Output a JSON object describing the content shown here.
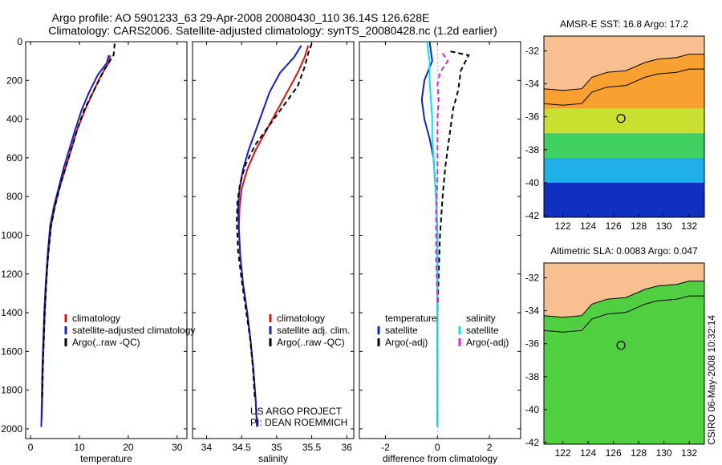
{
  "header": {
    "line1": "Argo profile: AO 5901233_63 29-Apr-2008 20080430_110 36.14S 126.628E",
    "line2": "Climatology: CARS2006. Satellite-adjusted climatology: synTS_20080428.nc (1.2d earlier)"
  },
  "credit": "CSIRO 06-May-2008 10:32:14",
  "colors": {
    "clim": "#e01010",
    "sat": "#1020d0",
    "argo": "#000000",
    "satS": "#00e5ee",
    "argoS": "#e020e0",
    "land": "#f8c090"
  },
  "chart_data": [
    {
      "type": "line",
      "xlabel": "temperature",
      "ylabel": "",
      "xlim": [
        -1,
        32
      ],
      "ylim": [
        2050,
        0
      ],
      "xticks": [
        "0",
        "10",
        "20",
        "30"
      ],
      "xtick_values": [
        0,
        10,
        20,
        30
      ],
      "yticks": [
        "0",
        "200",
        "400",
        "600",
        "800",
        "1000",
        "1200",
        "1400",
        "1600",
        "1800",
        "2000"
      ],
      "ytick_values": [
        0,
        200,
        400,
        600,
        800,
        1000,
        1200,
        1400,
        1600,
        1800,
        2000
      ],
      "legend": [
        "climatology",
        "satellite-adjusted climatology",
        "Argo(..raw -QC)"
      ],
      "legend_position": "lower-middle",
      "series": [
        {
          "name": "climatology",
          "color": "clim",
          "dash": false,
          "x": [
            16.3,
            16.0,
            14.5,
            12.8,
            11.2,
            9.6,
            8.4,
            7.2,
            6.0,
            5.0,
            4.2,
            3.6,
            3.2,
            2.9,
            2.7,
            2.5,
            2.4,
            2.3
          ],
          "y": [
            70,
            110,
            170,
            260,
            350,
            450,
            550,
            650,
            750,
            850,
            950,
            1100,
            1250,
            1400,
            1550,
            1700,
            1850,
            1950
          ]
        },
        {
          "name": "satellite-adjusted climatology",
          "color": "sat",
          "dash": false,
          "x": [
            16.0,
            15.6,
            13.8,
            12.0,
            10.5,
            9.2,
            8.0,
            6.8,
            5.8,
            4.8,
            4.0,
            3.5,
            3.1,
            2.8,
            2.6,
            2.4,
            2.3,
            2.2
          ],
          "y": [
            70,
            110,
            170,
            260,
            350,
            450,
            550,
            650,
            750,
            850,
            950,
            1100,
            1250,
            1400,
            1550,
            1700,
            1850,
            1990
          ]
        },
        {
          "name": "Argo(..raw -QC)",
          "color": "argo",
          "dash": true,
          "x": [
            17.2,
            17.0,
            15.2,
            12.8,
            11.0,
            9.6,
            8.4,
            7.2,
            6.0,
            5.0,
            4.2,
            3.6,
            3.2,
            2.9,
            2.7,
            2.5,
            2.4
          ],
          "y": [
            10,
            70,
            140,
            260,
            350,
            450,
            550,
            650,
            750,
            850,
            950,
            1100,
            1250,
            1400,
            1550,
            1700,
            1850
          ]
        }
      ]
    },
    {
      "type": "line",
      "xlabel": "salinity",
      "ylabel": "",
      "xlim": [
        33.8,
        36.1
      ],
      "ylim": [
        2050,
        0
      ],
      "xticks": [
        "34",
        "34.5",
        "35",
        "35.5",
        "36"
      ],
      "xtick_values": [
        34,
        34.5,
        35,
        35.5,
        36
      ],
      "legend": [
        "climatology",
        "satellite adj. clim.",
        "Argo(..raw -QC)"
      ],
      "legend_position": "lower-right",
      "annotations": [
        "US ARGO PROJECT",
        "PI: DEAN ROEMMICH"
      ],
      "series": [
        {
          "name": "climatology",
          "color": "clim",
          "dash": false,
          "x": [
            35.45,
            35.4,
            35.3,
            35.15,
            35.0,
            34.85,
            34.7,
            34.58,
            34.5,
            34.47,
            34.46,
            34.48,
            34.52,
            34.58,
            34.63,
            34.67,
            34.7,
            34.72
          ],
          "y": [
            20,
            80,
            160,
            260,
            360,
            460,
            560,
            660,
            760,
            860,
            960,
            1100,
            1250,
            1400,
            1550,
            1700,
            1850,
            1990
          ]
        },
        {
          "name": "satellite adj. clim.",
          "color": "sat",
          "dash": false,
          "x": [
            35.35,
            35.25,
            35.05,
            34.9,
            34.8,
            34.7,
            34.6,
            34.52,
            34.47,
            34.45,
            34.46,
            34.48,
            34.52,
            34.58,
            34.63,
            34.67,
            34.7,
            34.72
          ],
          "y": [
            20,
            80,
            160,
            260,
            360,
            460,
            560,
            660,
            760,
            860,
            960,
            1100,
            1250,
            1400,
            1550,
            1700,
            1850,
            1990
          ]
        },
        {
          "name": "Argo(..raw -QC)",
          "color": "argo",
          "dash": true,
          "x": [
            35.5,
            35.45,
            35.4,
            35.3,
            35.1,
            34.9,
            34.7,
            34.56,
            34.48,
            34.44,
            34.43,
            34.45,
            34.5,
            34.56,
            34.62,
            34.66,
            34.69
          ],
          "y": [
            10,
            60,
            130,
            230,
            330,
            430,
            530,
            630,
            730,
            830,
            930,
            1080,
            1230,
            1380,
            1530,
            1680,
            1850
          ]
        }
      ]
    },
    {
      "type": "line",
      "xlabel": "difference from climatology",
      "ylabel": "",
      "xlim": [
        -3,
        3.2
      ],
      "ylim": [
        2050,
        0
      ],
      "xticks": [
        "-2",
        "0",
        "2"
      ],
      "xtick_values": [
        -2,
        0,
        2
      ],
      "legend": [
        "temperature",
        "satellite",
        "Argo(-adj)",
        "salinity",
        "satellite",
        "Argo(-adj)"
      ],
      "legend_position": "lower",
      "series": [
        {
          "name": "satellite",
          "color": "sat",
          "dash": false,
          "x": [
            -0.3,
            -0.2,
            -0.5,
            -0.6,
            -0.5,
            -0.3,
            -0.15,
            -0.1,
            -0.05,
            0.0,
            0.0,
            0.0,
            0.0,
            0.0
          ],
          "y": [
            0,
            100,
            200,
            300,
            400,
            500,
            600,
            700,
            800,
            1000,
            1200,
            1400,
            1600,
            1990
          ]
        },
        {
          "name": "Argo(-adj)",
          "color": "argo",
          "dash": true,
          "x": [
            0.5,
            1.2,
            0.9,
            0.8,
            0.6,
            0.5,
            0.4,
            0.3,
            0.2,
            0.1,
            0.05,
            0.0
          ],
          "y": [
            50,
            70,
            150,
            250,
            350,
            450,
            550,
            650,
            800,
            1000,
            1200,
            1400
          ]
        },
        {
          "name": "satellite",
          "color": "satS",
          "dash": false,
          "x": [
            -0.4,
            -0.3,
            -0.3,
            -0.25,
            -0.2,
            -0.2,
            -0.15,
            -0.1,
            -0.05,
            0.0,
            0.0,
            0.0,
            0.0
          ],
          "y": [
            0,
            100,
            200,
            300,
            400,
            500,
            600,
            700,
            800,
            1000,
            1400,
            1800,
            1990
          ]
        },
        {
          "name": "Argo(-adj)",
          "color": "argoS",
          "dash": true,
          "x": [
            0.2,
            0.4,
            0.1,
            0.0,
            0.05,
            0.0,
            0.0,
            0.0,
            -0.05,
            -0.05,
            0.0
          ],
          "y": [
            60,
            100,
            160,
            220,
            300,
            400,
            500,
            700,
            900,
            1100,
            1350
          ]
        }
      ]
    },
    {
      "type": "heatmap",
      "title": "AMSR-E SST: 16.8 Argo: 17.2",
      "xlim": [
        120.5,
        133.2
      ],
      "ylim": [
        -42.1,
        -31.1
      ],
      "xticks": [
        "122",
        "124",
        "126",
        "128",
        "130",
        "132"
      ],
      "xtick_values": [
        122,
        124,
        126,
        128,
        130,
        132
      ],
      "yticks": [
        "-32",
        "-34",
        "-36",
        "-38",
        "-40",
        "-42"
      ],
      "ytick_values": [
        -32,
        -34,
        -36,
        -38,
        -40,
        -42
      ],
      "marker": {
        "lon": 126.6,
        "lat": -36.1
      },
      "color_bands": [
        {
          "lat_top": -34.0,
          "lat_bottom": -35.5,
          "color": "#f8a030"
        },
        {
          "lat_top": -35.5,
          "lat_bottom": -37.0,
          "color": "#c8e030"
        },
        {
          "lat_top": -37.0,
          "lat_bottom": -38.5,
          "color": "#40d060"
        },
        {
          "lat_top": -38.5,
          "lat_bottom": -40.0,
          "color": "#20b0e8"
        },
        {
          "lat_top": -40.0,
          "lat_bottom": -42.1,
          "color": "#1030c0"
        }
      ]
    },
    {
      "type": "heatmap",
      "title": "Altimetric SLA: 0.0083 Argo: 0.047",
      "xlim": [
        120.5,
        133.2
      ],
      "ylim": [
        -42.1,
        -31.1
      ],
      "xticks": [
        "122",
        "124",
        "126",
        "128",
        "130",
        "132"
      ],
      "xtick_values": [
        122,
        124,
        126,
        128,
        130,
        132
      ],
      "yticks": [
        "-32",
        "-34",
        "-36",
        "-38",
        "-40",
        "-42"
      ],
      "ytick_values": [
        -32,
        -34,
        -36,
        -38,
        -40,
        -42
      ],
      "marker": {
        "lon": 126.6,
        "lat": -36.1
      },
      "color_bands": [
        {
          "lat_top": -34.0,
          "lat_bottom": -42.1,
          "color": "#50d040"
        }
      ]
    }
  ]
}
